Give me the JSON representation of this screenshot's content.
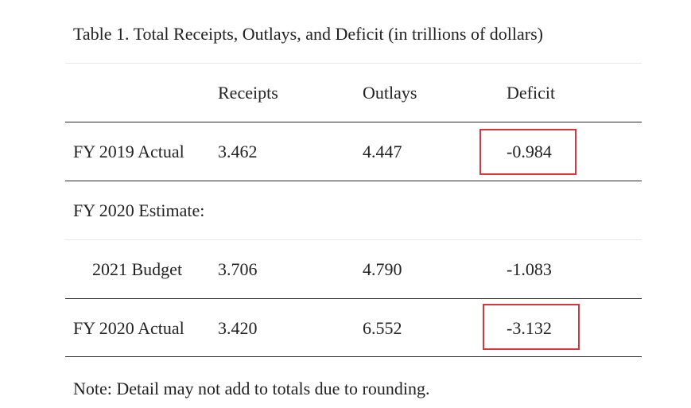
{
  "table": {
    "caption": "Table 1. Total Receipts, Outlays, and Deficit (in trillions of dollars)",
    "headers": [
      "",
      "Receipts",
      "Outlays",
      "Deficit"
    ],
    "rows": [
      {
        "label": "FY 2019 Actual",
        "receipts": "3.462",
        "outlays": "4.447",
        "deficit": "-0.984",
        "deficit_highlighted": true
      },
      {
        "label": "FY 2020 Estimate:",
        "receipts": "",
        "outlays": "",
        "deficit": ""
      },
      {
        "label": "2021 Budget",
        "receipts": "3.706",
        "outlays": "4.790",
        "deficit": "-1.083"
      },
      {
        "label": "FY 2020 Actual",
        "receipts": "3.420",
        "outlays": "6.552",
        "deficit": "-3.132",
        "deficit_highlighted": true
      }
    ],
    "note": "Note: Detail may not add to totals due to rounding.",
    "highlight_color": "#d9343a"
  }
}
